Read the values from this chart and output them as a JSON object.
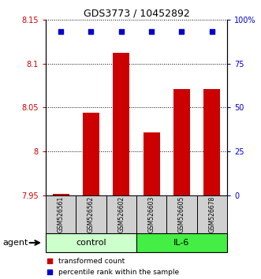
{
  "title": "GDS3773 / 10452892",
  "samples": [
    "GSM526561",
    "GSM526562",
    "GSM526602",
    "GSM526603",
    "GSM526605",
    "GSM526678"
  ],
  "bar_values": [
    7.952,
    8.044,
    8.112,
    8.022,
    8.071,
    8.071
  ],
  "percentile_values": [
    93,
    93,
    93,
    93,
    93,
    93
  ],
  "ylim_left": [
    7.95,
    8.15
  ],
  "ylim_right": [
    0,
    100
  ],
  "yticks_left": [
    7.95,
    8.0,
    8.05,
    8.1,
    8.15
  ],
  "ytick_labels_left": [
    "7.95",
    "8",
    "8.05",
    "8.1",
    "8.15"
  ],
  "yticks_right": [
    0,
    25,
    50,
    75,
    100
  ],
  "ytick_labels_right": [
    "0",
    "25",
    "50",
    "75",
    "100%"
  ],
  "groups": [
    {
      "label": "control",
      "indices": [
        0,
        1,
        2
      ],
      "color": "#ccffcc"
    },
    {
      "label": "IL-6",
      "indices": [
        3,
        4,
        5
      ],
      "color": "#44ee44"
    }
  ],
  "bar_color": "#cc0000",
  "dot_color": "#0000cc",
  "bar_width": 0.55,
  "background_color": "#ffffff",
  "agent_label": "agent"
}
